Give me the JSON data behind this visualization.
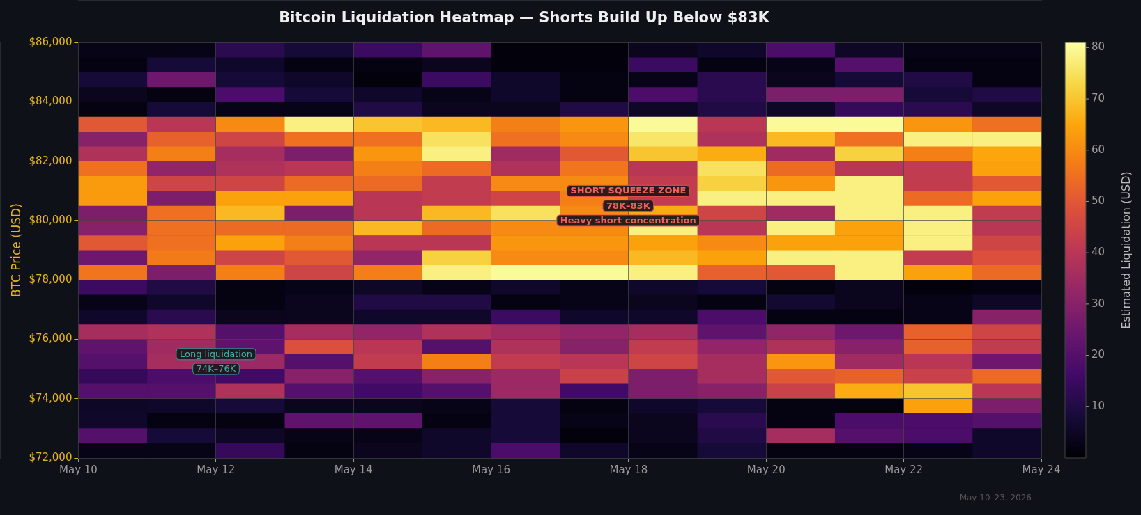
{
  "chart_data": {
    "type": "heatmap",
    "title": "Bitcoin Liquidation Heatmap — Shorts Build Up Below $83K",
    "ylabel": "BTC Price (USD)",
    "clabel": "Estimated Liquidation (USD)",
    "x": [
      "--05-10T12:00",
      "--05-11T12:00",
      "--05-12T12:00",
      "--05-13T12:00",
      "--05-14T12:00",
      "--05-15T12:00",
      "--05-16T12:00",
      "--05-17T12:00",
      "--05-18T12:00",
      "--05-19T12:00",
      "--05-20T12:00",
      "--05-21T12:00",
      "--05-22T12:00",
      "--05-23T12:00"
    ],
    "xlim": [
      "--05-10",
      "--05-24"
    ],
    "xticks": [
      {
        "value": "--05-10",
        "label": "May 10"
      },
      {
        "value": "--05-12",
        "label": "May 12"
      },
      {
        "value": "--05-14",
        "label": "May 14"
      },
      {
        "value": "--05-16",
        "label": "May 16"
      },
      {
        "value": "--05-18",
        "label": "May 18"
      },
      {
        "value": "--05-20",
        "label": "May 20"
      },
      {
        "value": "--05-22",
        "label": "May 22"
      },
      {
        "value": "--05-24",
        "label": "May 24"
      }
    ],
    "ylim": [
      72000,
      86000
    ],
    "yticks": [
      {
        "value": 72000,
        "label": "$72,000"
      },
      {
        "value": 74000,
        "label": "$74,000"
      },
      {
        "value": 76000,
        "label": "$76,000"
      },
      {
        "value": 78000,
        "label": "$78,000"
      },
      {
        "value": 80000,
        "label": "$80,000"
      },
      {
        "value": 82000,
        "label": "$82,000"
      },
      {
        "value": 84000,
        "label": "$84,000"
      },
      {
        "value": 86000,
        "label": "$86,000"
      }
    ],
    "cells": [
      [
        3,
        3,
        12,
        8,
        15,
        22,
        1,
        1,
        4,
        6,
        18,
        5,
        3,
        3
      ],
      [
        2,
        8,
        6,
        2,
        2,
        4,
        1,
        1,
        15,
        2,
        3,
        20,
        2,
        2
      ],
      [
        8,
        25,
        8,
        6,
        1,
        15,
        6,
        2,
        3,
        12,
        4,
        8,
        10,
        2
      ],
      [
        4,
        2,
        18,
        8,
        6,
        3,
        6,
        2,
        18,
        12,
        28,
        28,
        8,
        10
      ],
      [
        2,
        8,
        3,
        3,
        10,
        4,
        4,
        10,
        5,
        10,
        5,
        14,
        12,
        5
      ],
      [
        50,
        40,
        60,
        78,
        70,
        68,
        58,
        62,
        80,
        40,
        80,
        80,
        62,
        55
      ],
      [
        30,
        52,
        45,
        55,
        55,
        75,
        55,
        60,
        76,
        38,
        68,
        55,
        78,
        78
      ],
      [
        38,
        58,
        36,
        28,
        62,
        78,
        35,
        50,
        70,
        66,
        35,
        72,
        58,
        65
      ],
      [
        55,
        32,
        38,
        40,
        58,
        54,
        38,
        56,
        40,
        75,
        54,
        40,
        42,
        64
      ],
      [
        63,
        45,
        45,
        54,
        54,
        42,
        60,
        60,
        42,
        72,
        62,
        78,
        42,
        50
      ],
      [
        63,
        28,
        64,
        64,
        40,
        42,
        45,
        58,
        42,
        78,
        78,
        78,
        54,
        64
      ],
      [
        28,
        55,
        68,
        28,
        40,
        68,
        75,
        60,
        66,
        45,
        35,
        78,
        78,
        42
      ],
      [
        30,
        55,
        54,
        54,
        68,
        54,
        60,
        60,
        78,
        40,
        78,
        64,
        78,
        40
      ],
      [
        50,
        55,
        64,
        58,
        40,
        40,
        62,
        62,
        64,
        60,
        64,
        64,
        78,
        45
      ],
      [
        25,
        57,
        45,
        50,
        32,
        72,
        60,
        60,
        68,
        64,
        78,
        78,
        42,
        48
      ],
      [
        56,
        28,
        58,
        45,
        58,
        78,
        80,
        80,
        78,
        52,
        50,
        78,
        64,
        54
      ],
      [
        15,
        10,
        2,
        3,
        5,
        3,
        6,
        3,
        6,
        8,
        2,
        4,
        1,
        2
      ],
      [
        3,
        6,
        2,
        4,
        10,
        10,
        2,
        3,
        4,
        2,
        7,
        4,
        3,
        5
      ],
      [
        6,
        12,
        4,
        4,
        6,
        6,
        15,
        6,
        6,
        18,
        2,
        2,
        3,
        30
      ],
      [
        36,
        38,
        20,
        36,
        32,
        38,
        35,
        32,
        36,
        22,
        32,
        25,
        52,
        45
      ],
      [
        22,
        35,
        22,
        48,
        40,
        20,
        38,
        30,
        42,
        32,
        38,
        30,
        52,
        42
      ],
      [
        20,
        36,
        34,
        20,
        42,
        58,
        42,
        40,
        45,
        36,
        62,
        35,
        40,
        25
      ],
      [
        14,
        18,
        16,
        30,
        20,
        30,
        34,
        44,
        28,
        36,
        50,
        52,
        44,
        54
      ],
      [
        20,
        20,
        38,
        20,
        16,
        20,
        34,
        16,
        28,
        30,
        44,
        66,
        70,
        40
      ],
      [
        5,
        6,
        8,
        4,
        4,
        3,
        8,
        2,
        6,
        8,
        2,
        2,
        64,
        28
      ],
      [
        6,
        2,
        2,
        22,
        22,
        2,
        8,
        3,
        4,
        12,
        2,
        18,
        18,
        20
      ],
      [
        20,
        8,
        5,
        3,
        3,
        6,
        8,
        1,
        4,
        10,
        36,
        20,
        18,
        6
      ],
      [
        3,
        3,
        14,
        2,
        4,
        6,
        18,
        6,
        3,
        8,
        2,
        2,
        3,
        6
      ]
    ],
    "clim": [
      0,
      81
    ],
    "cticks": [
      10,
      20,
      30,
      40,
      50,
      60,
      70,
      80
    ],
    "grid": true,
    "annotations": [
      "SHORT SQUEEZE ZONE\n78K–83K\nHeavy short concentration",
      "Long liquidation\n74K–76K",
      "May 10–23, 2026"
    ]
  }
}
